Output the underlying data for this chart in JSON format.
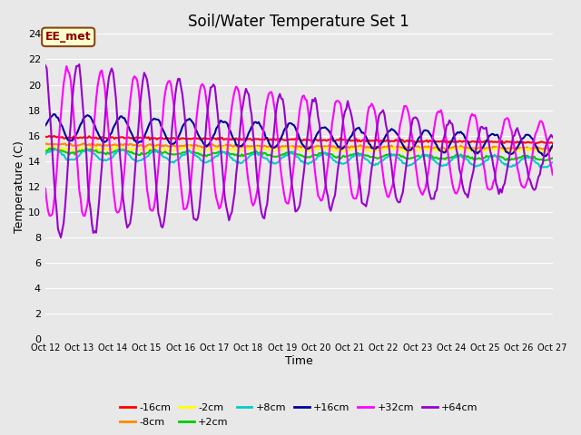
{
  "title": "Soil/Water Temperature Set 1",
  "xlabel": "Time",
  "ylabel": "Temperature (C)",
  "ylim": [
    0,
    24
  ],
  "yticks": [
    0,
    2,
    4,
    6,
    8,
    10,
    12,
    14,
    16,
    18,
    20,
    22,
    24
  ],
  "background_color": "#e8e8e8",
  "plot_bg_color": "#e8e8e8",
  "annotation_text": "EE_met",
  "annotation_bg": "#ffffcc",
  "annotation_border": "#cc0000",
  "series": [
    {
      "label": "-16cm",
      "color": "#ff0000",
      "linewidth": 1.5
    },
    {
      "label": "-8cm",
      "color": "#ff8800",
      "linewidth": 1.5
    },
    {
      "label": "-2cm",
      "color": "#ffff00",
      "linewidth": 1.5
    },
    {
      "label": "+2cm",
      "color": "#00cc00",
      "linewidth": 1.5
    },
    {
      "label": "+8cm",
      "color": "#00cccc",
      "linewidth": 1.5
    },
    {
      "label": "+16cm",
      "color": "#000099",
      "linewidth": 1.5
    },
    {
      "label": "+32cm",
      "color": "#ff00ff",
      "linewidth": 1.5
    },
    {
      "label": "+64cm",
      "color": "#9900cc",
      "linewidth": 1.5
    }
  ],
  "n_points": 360,
  "x_start": 12,
  "x_end": 27,
  "xtick_positions": [
    12,
    13,
    14,
    15,
    16,
    17,
    18,
    19,
    20,
    21,
    22,
    23,
    24,
    25,
    26,
    27
  ],
  "xtick_labels": [
    "Oct 12",
    "Oct 13",
    "Oct 14",
    "Oct 15",
    "Oct 16",
    "Oct 17",
    "Oct 18",
    "Oct 19",
    "Oct 20",
    "Oct 21",
    "Oct 22",
    "Oct 23",
    "Oct 24",
    "Oct 25",
    "Oct 26",
    "Oct 27"
  ]
}
